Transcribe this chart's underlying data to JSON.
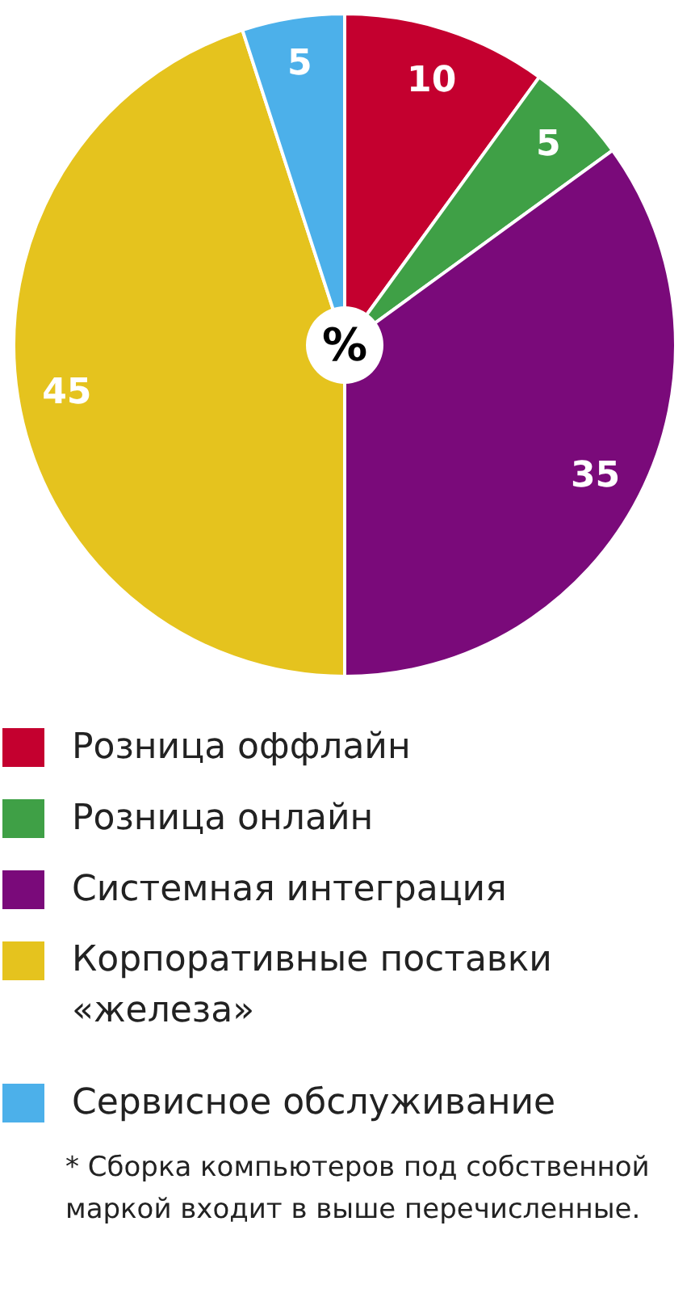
{
  "chart_data": {
    "type": "pie",
    "categories": [
      "Розница оффлайн",
      "Розница онлайн",
      "Системная интеграция",
      "Корпоративные поставки «железа»",
      "Сервисное обслуживание"
    ],
    "values": [
      10,
      5,
      35,
      45,
      5
    ],
    "colors": [
      "#c4002f",
      "#3fa046",
      "#7a0a7a",
      "#e5c31e",
      "#4cb0ea"
    ],
    "data_labels": true,
    "legend": "bottom",
    "annotations": [
      "%",
      "* Сборка компьютеров под собственной маркой входит в выше перечисленные."
    ]
  }
}
